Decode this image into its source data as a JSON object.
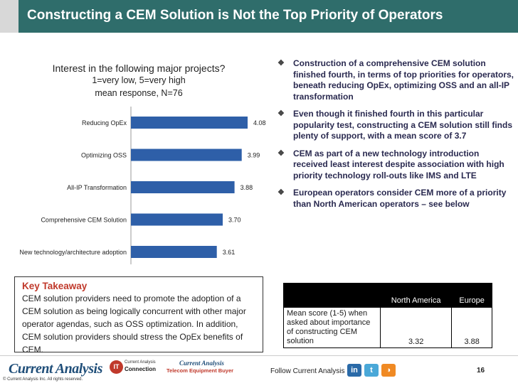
{
  "header": {
    "title": "Constructing a CEM Solution is Not the Top Priority of Operators"
  },
  "chart_data": {
    "type": "bar",
    "orientation": "horizontal",
    "title": "Interest in the following major projects?",
    "subtitle_lines": [
      "1=very low, 5=very high",
      "mean response, N=76"
    ],
    "categories": [
      "Reducing OpEx",
      "Optimizing OSS",
      "All-IP Transformation",
      "Comprehensive CEM Solution",
      "New technology/architecture adoption"
    ],
    "values": [
      4.08,
      3.99,
      3.88,
      3.7,
      3.61
    ],
    "value_labels": [
      "4.08",
      "3.99",
      "3.88",
      "3.70",
      "3.61"
    ],
    "xlim": [
      0,
      5
    ],
    "bar_color": "#2e5fa8",
    "grid": false,
    "legend": "none"
  },
  "bullets": [
    "Construction of a comprehensive CEM solution finished fourth, in terms of top priorities for operators, beneath  reducing OpEx, optimizing OSS and an all-IP transformation",
    "Even though it finished fourth in this particular popularity test, constructing a CEM solution still finds plenty of support,  with a mean score of 3.7",
    "CEM as part of a new technology introduction received least interest despite association with high priority technology roll-outs like IMS and LTE",
    "European operators consider CEM more of a priority than North American operators – see below"
  ],
  "takeaway": {
    "title": "Key Takeaway",
    "text": "CEM solution providers need to promote the adoption of a CEM solution as being  logically concurrent with other major operator agendas, such as OSS optimization. In addition, CEM solution providers should stress the OpEx benefits of CEM."
  },
  "score_table": {
    "headers": [
      "",
      "North America",
      "Europe"
    ],
    "row_label": "Mean score (1-5) when asked about importance of constructing CEM solution",
    "values": [
      "3.32",
      "3.88"
    ]
  },
  "footer": {
    "logo_current_analysis": "Current Analysis",
    "copyright": "© Current Analysis Inc. All rights reserved.",
    "logo_it": "IT",
    "logo_connection_top": "Current Analysis",
    "logo_connection": "Connection",
    "logo_teb_top": "Current Analysis",
    "logo_teb": "Telecom Equipment Buyer",
    "follow": "Follow Current Analysis",
    "social_linkedin": "in",
    "social_twitter": "t",
    "social_rss": "◑",
    "page": "16"
  }
}
